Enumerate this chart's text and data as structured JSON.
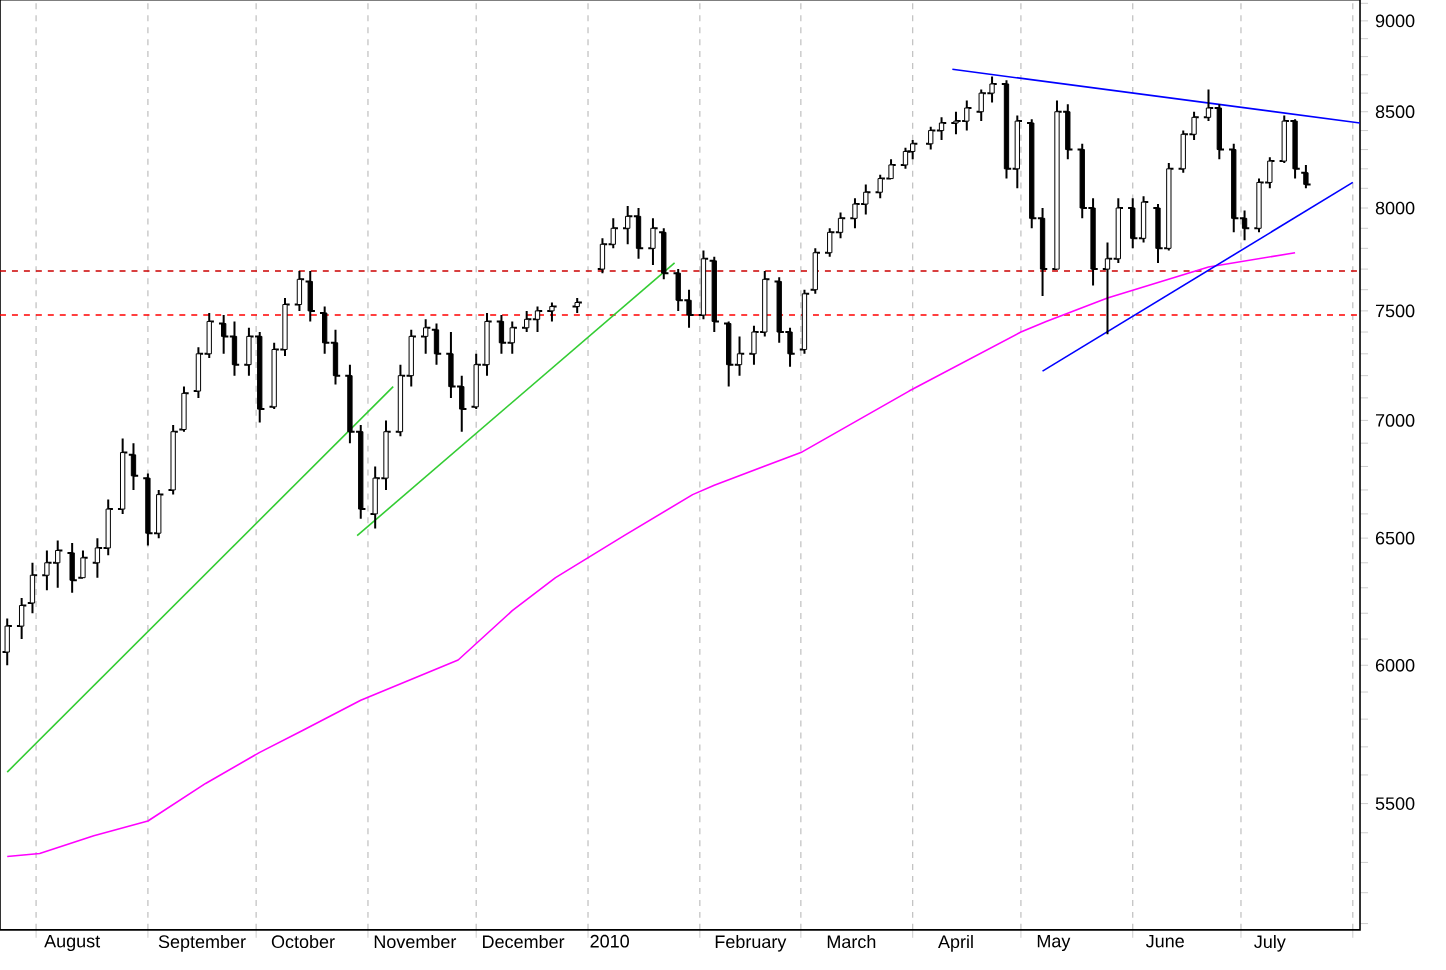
{
  "chart_data": {
    "type": "candlestick",
    "color": "#000000",
    "x": [
      "2009-07-24",
      "2009-07-28",
      "2009-07-31",
      "2009-08-04",
      "2009-08-07",
      "2009-08-11",
      "2009-08-14",
      "2009-08-18",
      "2009-08-21",
      "2009-08-25",
      "2009-08-28",
      "2009-09-01",
      "2009-09-04",
      "2009-09-08",
      "2009-09-11",
      "2009-09-15",
      "2009-09-18",
      "2009-09-22",
      "2009-09-25",
      "2009-09-29",
      "2009-10-02",
      "2009-10-06",
      "2009-10-09",
      "2009-10-13",
      "2009-10-16",
      "2009-10-20",
      "2009-10-23",
      "2009-10-27",
      "2009-10-30",
      "2009-11-03",
      "2009-11-06",
      "2009-11-10",
      "2009-11-13",
      "2009-11-17",
      "2009-11-20",
      "2009-11-24",
      "2009-11-27",
      "2009-12-01",
      "2009-12-04",
      "2009-12-08",
      "2009-12-11",
      "2009-12-15",
      "2009-12-18",
      "2009-12-22",
      "2009-12-29",
      "2010-01-05",
      "2010-01-08",
      "2010-01-12",
      "2010-01-15",
      "2010-01-19",
      "2010-01-22",
      "2010-01-26",
      "2010-01-29",
      "2010-02-02",
      "2010-02-05",
      "2010-02-09",
      "2010-02-12",
      "2010-02-16",
      "2010-02-19",
      "2010-02-23",
      "2010-02-26",
      "2010-03-02",
      "2010-03-05",
      "2010-03-09",
      "2010-03-12",
      "2010-03-16",
      "2010-03-19",
      "2010-03-23",
      "2010-03-26",
      "2010-03-30",
      "2010-04-01",
      "2010-04-06",
      "2010-04-09",
      "2010-04-13",
      "2010-04-16",
      "2010-04-20",
      "2010-04-23",
      "2010-04-27",
      "2010-04-30",
      "2010-05-04",
      "2010-05-07",
      "2010-05-11",
      "2010-05-14",
      "2010-05-18",
      "2010-05-21",
      "2010-05-25",
      "2010-05-28",
      "2010-06-01",
      "2010-06-04",
      "2010-06-08",
      "2010-06-11",
      "2010-06-15",
      "2010-06-18",
      "2010-06-22",
      "2010-06-25",
      "2010-06-29",
      "2010-07-02",
      "2010-07-06",
      "2010-07-09",
      "2010-07-13",
      "2010-07-16",
      "2010-07-19"
    ],
    "ohlc": [
      [
        6050,
        6180,
        6000,
        6150
      ],
      [
        6150,
        6260,
        6100,
        6230
      ],
      [
        6240,
        6400,
        6200,
        6350
      ],
      [
        6350,
        6450,
        6290,
        6400
      ],
      [
        6400,
        6490,
        6300,
        6450
      ],
      [
        6440,
        6480,
        6280,
        6330
      ],
      [
        6340,
        6450,
        6340,
        6420
      ],
      [
        6400,
        6500,
        6340,
        6460
      ],
      [
        6460,
        6660,
        6430,
        6620
      ],
      [
        6620,
        6920,
        6600,
        6860
      ],
      [
        6850,
        6900,
        6700,
        6760
      ],
      [
        6750,
        6770,
        6470,
        6520
      ],
      [
        6520,
        6700,
        6500,
        6680
      ],
      [
        6700,
        6980,
        6680,
        6950
      ],
      [
        6960,
        7150,
        6950,
        7120
      ],
      [
        7130,
        7330,
        7100,
        7300
      ],
      [
        7300,
        7490,
        7280,
        7450
      ],
      [
        7440,
        7480,
        7300,
        7380
      ],
      [
        7380,
        7450,
        7200,
        7250
      ],
      [
        7250,
        7420,
        7200,
        7380
      ],
      [
        7380,
        7400,
        6990,
        7050
      ],
      [
        7060,
        7350,
        7050,
        7320
      ],
      [
        7320,
        7560,
        7290,
        7530
      ],
      [
        7530,
        7690,
        7500,
        7650
      ],
      [
        7640,
        7690,
        7450,
        7500
      ],
      [
        7490,
        7520,
        7300,
        7350
      ],
      [
        7350,
        7410,
        7160,
        7200
      ],
      [
        7200,
        7250,
        6900,
        6950
      ],
      [
        6950,
        6980,
        6580,
        6620
      ],
      [
        6600,
        6800,
        6540,
        6750
      ],
      [
        6750,
        7000,
        6700,
        6950
      ],
      [
        6950,
        7250,
        6930,
        7200
      ],
      [
        7200,
        7410,
        7150,
        7380
      ],
      [
        7380,
        7460,
        7300,
        7420
      ],
      [
        7410,
        7440,
        7250,
        7300
      ],
      [
        7300,
        7400,
        7100,
        7150
      ],
      [
        7150,
        7200,
        6950,
        7050
      ],
      [
        7060,
        7300,
        7050,
        7250
      ],
      [
        7250,
        7490,
        7200,
        7450
      ],
      [
        7450,
        7480,
        7300,
        7350
      ],
      [
        7350,
        7450,
        7300,
        7420
      ],
      [
        7420,
        7500,
        7400,
        7460
      ],
      [
        7460,
        7520,
        7400,
        7500
      ],
      [
        7500,
        7540,
        7450,
        7520
      ],
      [
        7520,
        7560,
        7490,
        7540
      ],
      [
        7700,
        7850,
        7680,
        7820
      ],
      [
        7820,
        7950,
        7800,
        7900
      ],
      [
        7900,
        8010,
        7820,
        7960
      ],
      [
        7960,
        8000,
        7750,
        7800
      ],
      [
        7800,
        7950,
        7720,
        7900
      ],
      [
        7880,
        7900,
        7650,
        7680
      ],
      [
        7680,
        7700,
        7500,
        7550
      ],
      [
        7550,
        7600,
        7420,
        7480
      ],
      [
        7480,
        7790,
        7460,
        7750
      ],
      [
        7740,
        7760,
        7400,
        7450
      ],
      [
        7440,
        7450,
        7150,
        7250
      ],
      [
        7250,
        7380,
        7200,
        7300
      ],
      [
        7300,
        7430,
        7250,
        7400
      ],
      [
        7400,
        7690,
        7380,
        7650
      ],
      [
        7640,
        7660,
        7350,
        7400
      ],
      [
        7400,
        7420,
        7240,
        7300
      ],
      [
        7320,
        7600,
        7300,
        7580
      ],
      [
        7600,
        7800,
        7580,
        7780
      ],
      [
        7780,
        7900,
        7760,
        7880
      ],
      [
        7880,
        7980,
        7850,
        7950
      ],
      [
        7950,
        8050,
        7900,
        8020
      ],
      [
        8020,
        8120,
        7970,
        8080
      ],
      [
        8080,
        8170,
        8050,
        8150
      ],
      [
        8150,
        8250,
        8150,
        8220
      ],
      [
        8220,
        8310,
        8200,
        8290
      ],
      [
        8290,
        8350,
        8250,
        8330
      ],
      [
        8330,
        8420,
        8300,
        8400
      ],
      [
        8400,
        8470,
        8350,
        8440
      ],
      [
        8440,
        8500,
        8380,
        8450
      ],
      [
        8450,
        8560,
        8400,
        8520
      ],
      [
        8500,
        8620,
        8450,
        8600
      ],
      [
        8600,
        8690,
        8550,
        8650
      ],
      [
        8650,
        8670,
        8150,
        8200
      ],
      [
        8200,
        8480,
        8100,
        8450
      ],
      [
        8440,
        8460,
        7900,
        7950
      ],
      [
        7950,
        8000,
        7570,
        7700
      ],
      [
        7700,
        8560,
        7700,
        8500
      ],
      [
        8500,
        8540,
        8250,
        8300
      ],
      [
        8300,
        8330,
        7950,
        8000
      ],
      [
        8000,
        8050,
        7620,
        7700
      ],
      [
        7700,
        7830,
        7390,
        7750
      ],
      [
        7750,
        8050,
        7730,
        8000
      ],
      [
        8000,
        8050,
        7800,
        7850
      ],
      [
        7850,
        8060,
        7830,
        8030
      ],
      [
        8000,
        8020,
        7730,
        7800
      ],
      [
        7800,
        8230,
        7790,
        8200
      ],
      [
        8200,
        8400,
        8180,
        8380
      ],
      [
        8380,
        8500,
        8350,
        8470
      ],
      [
        8470,
        8620,
        8450,
        8520
      ],
      [
        8520,
        8540,
        8250,
        8300
      ],
      [
        8300,
        8330,
        7880,
        7950
      ],
      [
        7950,
        7990,
        7840,
        7900
      ],
      [
        7900,
        8150,
        7880,
        8130
      ],
      [
        8130,
        8260,
        8100,
        8240
      ],
      [
        8240,
        8480,
        8230,
        8450
      ],
      [
        8450,
        8460,
        8150,
        8200
      ],
      [
        8180,
        8220,
        8100,
        8120
      ]
    ],
    "series": [
      {
        "type": "line",
        "color": "#ff00ff",
        "x": [
          "2009-07-24",
          "2009-08-02",
          "2009-08-17",
          "2009-09-01",
          "2009-09-17",
          "2009-10-02",
          "2009-10-14",
          "2009-10-30",
          "2009-11-26",
          "2009-12-11",
          "2009-12-23",
          "2010-01-11",
          "2010-01-30",
          "2010-02-05",
          "2010-03-01",
          "2010-03-31",
          "2010-05-01",
          "2010-05-08",
          "2010-05-25",
          "2010-06-22",
          "2010-07-16"
        ],
        "values": [
          5320,
          5330,
          5390,
          5440,
          5570,
          5680,
          5760,
          5870,
          6020,
          6210,
          6340,
          6510,
          6680,
          6720,
          6860,
          7130,
          7400,
          7450,
          7560,
          7710,
          7780
        ]
      },
      {
        "type": "line",
        "color": "#33cc33",
        "x": [
          "2009-07-24",
          "2009-11-08"
        ],
        "values": [
          5610,
          7150
        ]
      },
      {
        "type": "line",
        "color": "#33cc33",
        "x": [
          "2009-10-29",
          "2010-01-25"
        ],
        "values": [
          6510,
          7730
        ]
      },
      {
        "type": "line",
        "color": "#0000ff",
        "x": [
          "2010-04-12",
          "2010-08-03"
        ],
        "values": [
          8730,
          8440
        ]
      },
      {
        "type": "line",
        "color": "#0000ff",
        "x": [
          "2010-05-07",
          "2010-08-01"
        ],
        "values": [
          7220,
          8130
        ]
      }
    ],
    "ref_lines": [
      {
        "axis": "y",
        "value": 7480,
        "color": "#ff0000",
        "line_style": "dashed"
      },
      {
        "axis": "y",
        "value": 7690,
        "color": "#cc0000",
        "line_style": "dashed"
      }
    ],
    "xlim": [
      "2009-07-22",
      "2010-08-03"
    ],
    "xticks": [
      {
        "value": "2009-08-01",
        "label": null
      },
      {
        "value": "2009-08-11",
        "label": "August"
      },
      {
        "value": "2009-09-01",
        "label": null
      },
      {
        "value": "2009-09-16",
        "label": "September"
      },
      {
        "value": "2009-10-01",
        "label": null
      },
      {
        "value": "2009-10-14",
        "label": "October"
      },
      {
        "value": "2009-11-01",
        "label": null
      },
      {
        "value": "2009-11-14",
        "label": "November"
      },
      {
        "value": "2009-12-01",
        "label": null
      },
      {
        "value": "2009-12-14",
        "label": "December"
      },
      {
        "value": "2010-01-01",
        "label": null
      },
      {
        "value": "2010-01-07",
        "label": "2010"
      },
      {
        "value": "2010-02-01",
        "label": null
      },
      {
        "value": "2010-02-15",
        "label": "February"
      },
      {
        "value": "2010-03-01",
        "label": null
      },
      {
        "value": "2010-03-15",
        "label": "March"
      },
      {
        "value": "2010-04-01",
        "label": null
      },
      {
        "value": "2010-04-13",
        "label": "April"
      },
      {
        "value": "2010-05-01",
        "label": null
      },
      {
        "value": "2010-05-10",
        "label": "May"
      },
      {
        "value": "2010-06-01",
        "label": null
      },
      {
        "value": "2010-06-10",
        "label": "June"
      },
      {
        "value": "2010-07-01",
        "label": null
      },
      {
        "value": "2010-07-09",
        "label": "July"
      },
      {
        "value": "2010-08-01",
        "label": null
      }
    ],
    "ylim": [
      5080,
      9120
    ],
    "yticks": [
      {
        "value": 5100,
        "label": null
      },
      {
        "value": 5200,
        "label": null
      },
      {
        "value": 5300,
        "label": null
      },
      {
        "value": 5400,
        "label": null
      },
      5500,
      {
        "value": 5600,
        "label": null
      },
      {
        "value": 5700,
        "label": null
      },
      {
        "value": 5800,
        "label": null
      },
      {
        "value": 5900,
        "label": null
      },
      6000,
      {
        "value": 6100,
        "label": null
      },
      {
        "value": 6200,
        "label": null
      },
      {
        "value": 6300,
        "label": null
      },
      {
        "value": 6400,
        "label": null
      },
      6500,
      {
        "value": 6600,
        "label": null
      },
      {
        "value": 6700,
        "label": null
      },
      {
        "value": 6800,
        "label": null
      },
      {
        "value": 6900,
        "label": null
      },
      7000,
      {
        "value": 7100,
        "label": null
      },
      {
        "value": 7200,
        "label": null
      },
      {
        "value": 7300,
        "label": null
      },
      {
        "value": 7400,
        "label": null
      },
      7500,
      {
        "value": 7600,
        "label": null
      },
      {
        "value": 7700,
        "label": null
      },
      {
        "value": 7800,
        "label": null
      },
      {
        "value": 7900,
        "label": null
      },
      8000,
      {
        "value": 8100,
        "label": null
      },
      {
        "value": 8200,
        "label": null
      },
      {
        "value": 8300,
        "label": null
      },
      {
        "value": 8400,
        "label": null
      },
      8500,
      {
        "value": 8600,
        "label": null
      },
      {
        "value": 8700,
        "label": null
      },
      {
        "value": 8800,
        "label": null
      },
      {
        "value": 8900,
        "label": null
      },
      9000,
      {
        "value": 9100,
        "label": null
      }
    ],
    "log": "y",
    "grid": "x"
  }
}
